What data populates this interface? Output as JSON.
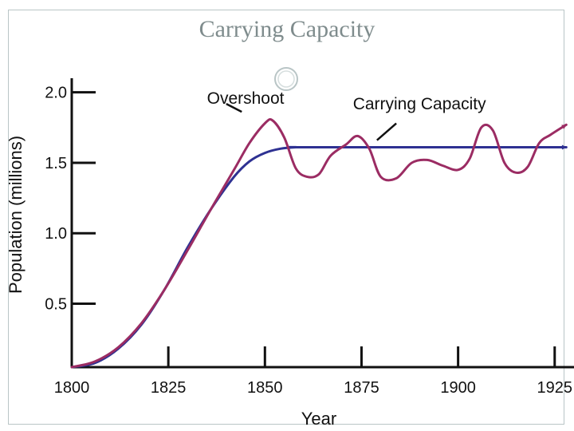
{
  "slide": {
    "title": "Carrying Capacity"
  },
  "colors": {
    "population": "#9b2c63",
    "capacity": "#2e3192",
    "axis": "#111111"
  },
  "icons": {
    "ornament": "circle-ornament-icon"
  },
  "chart_data": {
    "type": "line",
    "title": "",
    "xlabel": "Year",
    "ylabel": "Population (millions)",
    "xlim": [
      1800,
      1930
    ],
    "ylim": [
      0.05,
      2.1
    ],
    "xticks": [
      1800,
      1825,
      1850,
      1875,
      1900,
      1925
    ],
    "xtick_labels": [
      "1800",
      "1825",
      "1850",
      "1875",
      "1900",
      "1925"
    ],
    "yticks": [
      0.5,
      1.0,
      1.5,
      2.0
    ],
    "ytick_labels": [
      "0.5",
      "1.0",
      "1.5",
      "2.0"
    ],
    "series": [
      {
        "name": "Population",
        "color": "#9b2c63",
        "x": [
          1800,
          1806,
          1812,
          1818,
          1824,
          1830,
          1836,
          1842,
          1846,
          1850,
          1852,
          1855,
          1858,
          1861,
          1864,
          1867,
          1871,
          1874,
          1877,
          1880,
          1884,
          1888,
          1892,
          1896,
          1900,
          1903,
          1906,
          1909,
          1912,
          1915,
          1918,
          1921,
          1924,
          1928
        ],
        "values": [
          0.05,
          0.09,
          0.19,
          0.36,
          0.6,
          0.88,
          1.17,
          1.45,
          1.64,
          1.78,
          1.8,
          1.68,
          1.46,
          1.4,
          1.42,
          1.55,
          1.63,
          1.69,
          1.6,
          1.4,
          1.39,
          1.5,
          1.52,
          1.48,
          1.45,
          1.53,
          1.75,
          1.73,
          1.5,
          1.43,
          1.47,
          1.64,
          1.7,
          1.77
        ]
      },
      {
        "name": "Carrying Capacity",
        "color": "#2e3192",
        "x": [
          1800,
          1806,
          1812,
          1818,
          1824,
          1830,
          1836,
          1842,
          1846,
          1850,
          1854,
          1858,
          1862,
          1928
        ],
        "values": [
          0.05,
          0.08,
          0.18,
          0.35,
          0.6,
          0.9,
          1.17,
          1.4,
          1.51,
          1.57,
          1.6,
          1.61,
          1.61,
          1.61
        ]
      }
    ],
    "annotations": [
      {
        "text": "Overshoot",
        "x": 1845,
        "y": 1.92
      },
      {
        "text": "Carrying Capacity",
        "x": 1890,
        "y": 1.88
      }
    ]
  }
}
